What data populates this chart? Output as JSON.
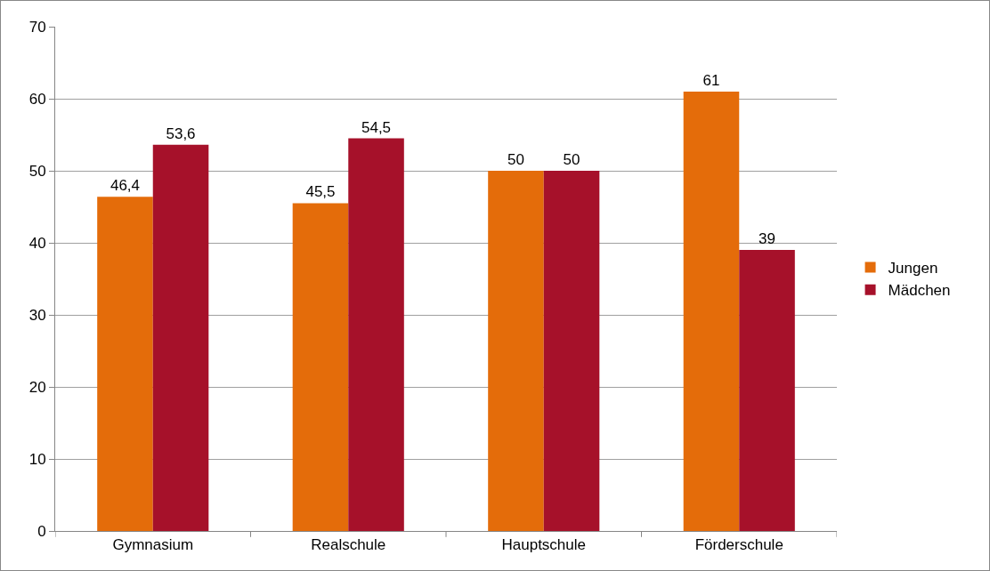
{
  "chart_data": {
    "type": "bar",
    "categories": [
      "Gymnasium",
      "Realschule",
      "Hauptschule",
      "Förderschule"
    ],
    "series": [
      {
        "name": "Jungen",
        "color": "#e46c0a",
        "values": [
          46.4,
          45.5,
          50,
          61
        ],
        "value_labels": [
          "46,4",
          "45,5",
          "50",
          "61"
        ]
      },
      {
        "name": "Mädchen",
        "color": "#a6112a",
        "values": [
          53.6,
          54.5,
          50,
          39
        ],
        "value_labels": [
          "53,6",
          "54,5",
          "50",
          "39"
        ]
      }
    ],
    "ylim": [
      0,
      70
    ],
    "yticks": [
      0,
      10,
      20,
      30,
      40,
      50,
      60,
      70
    ],
    "grid": "y",
    "legend": "right"
  }
}
